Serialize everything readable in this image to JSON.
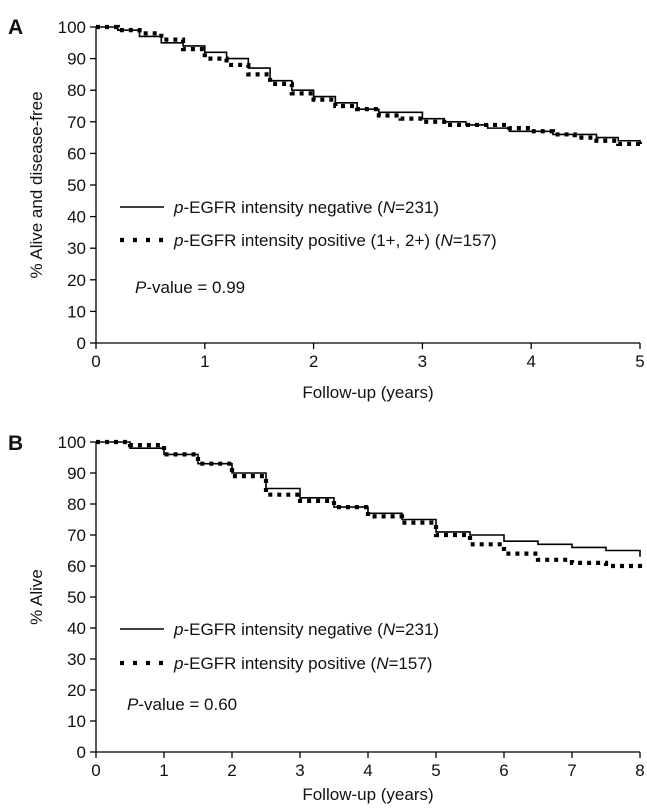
{
  "chart_data": [
    {
      "type": "line",
      "panel_label": "A",
      "xlabel": "Follow-up (years)",
      "ylabel": "% Alive and disease-free",
      "xlim": [
        0,
        5
      ],
      "ylim": [
        0,
        100
      ],
      "xticks": [
        0,
        1,
        2,
        3,
        4,
        5
      ],
      "yticks": [
        0,
        10,
        20,
        30,
        40,
        50,
        60,
        70,
        80,
        90,
        100
      ],
      "grid": false,
      "legend_position": "lower-left",
      "series": [
        {
          "name_prefix": "p",
          "name_mid": "-EGFR intensity negative (",
          "name_n": "N",
          "name_suffix": "=231)",
          "style": "solid",
          "x": [
            0,
            0.2,
            0.4,
            0.6,
            0.8,
            1.0,
            1.2,
            1.4,
            1.6,
            1.8,
            2.0,
            2.2,
            2.4,
            2.6,
            2.8,
            3.0,
            3.2,
            3.4,
            3.6,
            3.8,
            4.0,
            4.2,
            4.4,
            4.6,
            4.8,
            5.0
          ],
          "y": [
            100,
            99,
            97,
            95,
            94,
            92,
            90,
            87,
            83,
            80,
            78,
            76,
            74,
            73,
            73,
            71,
            70,
            69,
            68,
            67,
            67,
            66,
            66,
            65,
            64,
            63
          ]
        },
        {
          "name_prefix": "p",
          "name_mid": "-EGFR intensity positive (1+, 2+) (",
          "name_n": "N",
          "name_suffix": "=157)",
          "style": "dotted",
          "x": [
            0,
            0.2,
            0.4,
            0.6,
            0.8,
            1.0,
            1.2,
            1.4,
            1.6,
            1.8,
            2.0,
            2.2,
            2.4,
            2.6,
            2.8,
            3.0,
            3.2,
            3.4,
            3.6,
            3.8,
            4.0,
            4.2,
            4.4,
            4.6,
            4.8,
            5.0
          ],
          "y": [
            100,
            99,
            98,
            96,
            93,
            90,
            88,
            85,
            82,
            79,
            77,
            75,
            74,
            72,
            71,
            70,
            69,
            69,
            69,
            68,
            67,
            66,
            65,
            64,
            63,
            62
          ]
        }
      ],
      "annotation": {
        "italic": "P",
        "rest": "-value = 0.99"
      }
    },
    {
      "type": "line",
      "panel_label": "B",
      "xlabel": "Follow-up (years)",
      "ylabel": "% Alive",
      "xlim": [
        0,
        8
      ],
      "ylim": [
        0,
        100
      ],
      "xticks": [
        0,
        1,
        2,
        3,
        4,
        5,
        6,
        7,
        8
      ],
      "yticks": [
        0,
        10,
        20,
        30,
        40,
        50,
        60,
        70,
        80,
        90,
        100
      ],
      "grid": false,
      "legend_position": "lower-left",
      "series": [
        {
          "name_prefix": "p",
          "name_mid": "-EGFR intensity negative (",
          "name_n": "N",
          "name_suffix": "=231)",
          "style": "solid",
          "x": [
            0,
            0.5,
            1.0,
            1.5,
            2.0,
            2.5,
            3.0,
            3.5,
            4.0,
            4.5,
            5.0,
            5.5,
            6.0,
            6.5,
            7.0,
            7.5,
            8.0
          ],
          "y": [
            100,
            98,
            96,
            93,
            90,
            85,
            82,
            79,
            77,
            75,
            71,
            70,
            68,
            67,
            66,
            65,
            63
          ]
        },
        {
          "name_prefix": "p",
          "name_mid": "-EGFR intensity positive (",
          "name_n": "N",
          "name_suffix": "=157)",
          "style": "dotted",
          "x": [
            0,
            0.5,
            1.0,
            1.5,
            2.0,
            2.5,
            3.0,
            3.5,
            4.0,
            4.5,
            5.0,
            5.5,
            6.0,
            6.5,
            7.0,
            7.5,
            8.0
          ],
          "y": [
            100,
            99,
            96,
            93,
            89,
            83,
            81,
            79,
            76,
            74,
            70,
            67,
            64,
            62,
            61,
            60,
            58
          ]
        }
      ],
      "annotation": {
        "italic": "P",
        "rest": "-value = 0.60"
      }
    }
  ]
}
